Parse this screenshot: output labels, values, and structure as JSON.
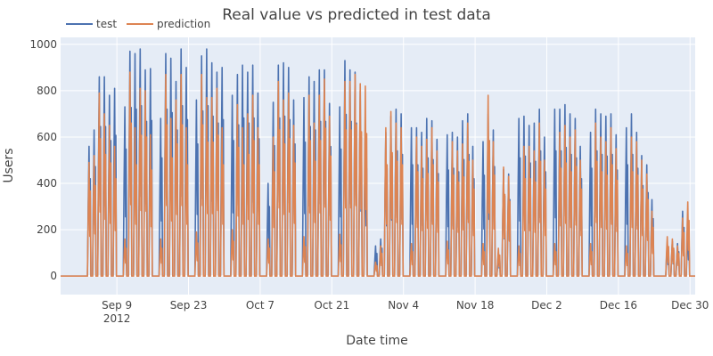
{
  "chart_data": {
    "type": "line",
    "title": "Real value vs predicted in test data",
    "xlabel": "Date time",
    "ylabel": "Users",
    "x_range": [
      "2012-08-29",
      "2012-12-31"
    ],
    "ylim": [
      -80,
      1030
    ],
    "y_ticks": [
      0,
      200,
      400,
      600,
      800,
      1000
    ],
    "x_ticks": [
      {
        "date": "2012-09-09",
        "label": "Sep 9",
        "sublabel": "2012"
      },
      {
        "date": "2012-09-23",
        "label": "Sep 23",
        "sublabel": ""
      },
      {
        "date": "2012-10-07",
        "label": "Oct 7",
        "sublabel": ""
      },
      {
        "date": "2012-10-21",
        "label": "Oct 21",
        "sublabel": ""
      },
      {
        "date": "2012-11-04",
        "label": "Nov 4",
        "sublabel": ""
      },
      {
        "date": "2012-11-18",
        "label": "Nov 18",
        "sublabel": ""
      },
      {
        "date": "2012-12-02",
        "label": "Dec 2",
        "sublabel": ""
      },
      {
        "date": "2012-12-16",
        "label": "Dec 16",
        "sublabel": ""
      },
      {
        "date": "2012-12-30",
        "label": "Dec 30",
        "sublabel": ""
      }
    ],
    "grid": true,
    "legend": "top-left, horizontal",
    "series": [
      {
        "name": "test",
        "color": "#4C72B0",
        "daily_peaks": [
          [
            "2012-09-03",
            560
          ],
          [
            "2012-09-04",
            630
          ],
          [
            "2012-09-05",
            860
          ],
          [
            "2012-09-06",
            860
          ],
          [
            "2012-09-07",
            780
          ],
          [
            "2012-09-08",
            810
          ],
          [
            "2012-09-10",
            730
          ],
          [
            "2012-09-11",
            970
          ],
          [
            "2012-09-12",
            960
          ],
          [
            "2012-09-13",
            980
          ],
          [
            "2012-09-14",
            890
          ],
          [
            "2012-09-15",
            895
          ],
          [
            "2012-09-17",
            680
          ],
          [
            "2012-09-18",
            960
          ],
          [
            "2012-09-19",
            940
          ],
          [
            "2012-09-20",
            840
          ],
          [
            "2012-09-21",
            980
          ],
          [
            "2012-09-22",
            900
          ],
          [
            "2012-09-24",
            760
          ],
          [
            "2012-09-25",
            950
          ],
          [
            "2012-09-26",
            980
          ],
          [
            "2012-09-27",
            920
          ],
          [
            "2012-09-28",
            880
          ],
          [
            "2012-09-29",
            900
          ],
          [
            "2012-10-01",
            780
          ],
          [
            "2012-10-02",
            870
          ],
          [
            "2012-10-03",
            910
          ],
          [
            "2012-10-04",
            880
          ],
          [
            "2012-10-05",
            910
          ],
          [
            "2012-10-06",
            790
          ],
          [
            "2012-10-08",
            400
          ],
          [
            "2012-10-09",
            750
          ],
          [
            "2012-10-10",
            910
          ],
          [
            "2012-10-11",
            920
          ],
          [
            "2012-10-12",
            900
          ],
          [
            "2012-10-13",
            760
          ],
          [
            "2012-10-15",
            770
          ],
          [
            "2012-10-16",
            860
          ],
          [
            "2012-10-17",
            840
          ],
          [
            "2012-10-18",
            890
          ],
          [
            "2012-10-19",
            890
          ],
          [
            "2012-10-20",
            745
          ],
          [
            "2012-10-22",
            730
          ],
          [
            "2012-10-23",
            930
          ],
          [
            "2012-10-24",
            890
          ],
          [
            "2012-10-25",
            880
          ],
          [
            "2012-10-26",
            800
          ],
          [
            "2012-10-27",
            620
          ],
          [
            "2012-10-29",
            130
          ],
          [
            "2012-10-30",
            160
          ],
          [
            "2012-10-31",
            620
          ],
          [
            "2012-11-01",
            690
          ],
          [
            "2012-11-02",
            720
          ],
          [
            "2012-11-03",
            700
          ],
          [
            "2012-11-05",
            640
          ],
          [
            "2012-11-06",
            640
          ],
          [
            "2012-11-07",
            620
          ],
          [
            "2012-11-08",
            680
          ],
          [
            "2012-11-09",
            670
          ],
          [
            "2012-11-10",
            590
          ],
          [
            "2012-11-12",
            610
          ],
          [
            "2012-11-13",
            620
          ],
          [
            "2012-11-14",
            600
          ],
          [
            "2012-11-15",
            670
          ],
          [
            "2012-11-16",
            700
          ],
          [
            "2012-11-17",
            560
          ],
          [
            "2012-11-19",
            580
          ],
          [
            "2012-11-20",
            700
          ],
          [
            "2012-11-21",
            630
          ],
          [
            "2012-11-22",
            100
          ],
          [
            "2012-11-23",
            460
          ],
          [
            "2012-11-24",
            440
          ],
          [
            "2012-11-26",
            680
          ],
          [
            "2012-11-27",
            690
          ],
          [
            "2012-11-28",
            650
          ],
          [
            "2012-11-29",
            660
          ],
          [
            "2012-11-30",
            720
          ],
          [
            "2012-12-01",
            600
          ],
          [
            "2012-12-03",
            720
          ],
          [
            "2012-12-04",
            720
          ],
          [
            "2012-12-05",
            740
          ],
          [
            "2012-12-06",
            700
          ],
          [
            "2012-12-07",
            680
          ],
          [
            "2012-12-08",
            560
          ],
          [
            "2012-12-10",
            620
          ],
          [
            "2012-12-11",
            720
          ],
          [
            "2012-12-12",
            700
          ],
          [
            "2012-12-13",
            690
          ],
          [
            "2012-12-14",
            700
          ],
          [
            "2012-12-15",
            610
          ],
          [
            "2012-12-17",
            640
          ],
          [
            "2012-12-18",
            700
          ],
          [
            "2012-12-19",
            620
          ],
          [
            "2012-12-20",
            520
          ],
          [
            "2012-12-21",
            480
          ],
          [
            "2012-12-22",
            330
          ],
          [
            "2012-12-25",
            140
          ],
          [
            "2012-12-26",
            150
          ],
          [
            "2012-12-27",
            140
          ],
          [
            "2012-12-28",
            280
          ],
          [
            "2012-12-29",
            200
          ],
          [
            "2012-12-31",
            310
          ]
        ]
      },
      {
        "name": "prediction",
        "color": "#DD8452",
        "daily_peaks": [
          [
            "2012-09-03",
            490
          ],
          [
            "2012-09-04",
            520
          ],
          [
            "2012-09-05",
            790
          ],
          [
            "2012-09-06",
            700
          ],
          [
            "2012-09-07",
            650
          ],
          [
            "2012-09-08",
            560
          ],
          [
            "2012-09-10",
            160
          ],
          [
            "2012-09-11",
            880
          ],
          [
            "2012-09-12",
            640
          ],
          [
            "2012-09-13",
            810
          ],
          [
            "2012-09-14",
            800
          ],
          [
            "2012-09-15",
            610
          ],
          [
            "2012-09-17",
            160
          ],
          [
            "2012-09-18",
            870
          ],
          [
            "2012-09-19",
            680
          ],
          [
            "2012-09-20",
            760
          ],
          [
            "2012-09-21",
            870
          ],
          [
            "2012-09-22",
            640
          ],
          [
            "2012-09-24",
            190
          ],
          [
            "2012-09-25",
            870
          ],
          [
            "2012-09-26",
            770
          ],
          [
            "2012-09-27",
            770
          ],
          [
            "2012-09-28",
            810
          ],
          [
            "2012-09-29",
            640
          ],
          [
            "2012-10-01",
            200
          ],
          [
            "2012-10-02",
            740
          ],
          [
            "2012-10-03",
            640
          ],
          [
            "2012-10-04",
            700
          ],
          [
            "2012-10-05",
            780
          ],
          [
            "2012-10-06",
            640
          ],
          [
            "2012-10-08",
            160
          ],
          [
            "2012-10-09",
            600
          ],
          [
            "2012-10-10",
            840
          ],
          [
            "2012-10-11",
            760
          ],
          [
            "2012-10-12",
            790
          ],
          [
            "2012-10-13",
            650
          ],
          [
            "2012-10-15",
            170
          ],
          [
            "2012-10-16",
            780
          ],
          [
            "2012-10-17",
            660
          ],
          [
            "2012-10-18",
            780
          ],
          [
            "2012-10-19",
            850
          ],
          [
            "2012-10-20",
            690
          ],
          [
            "2012-10-22",
            180
          ],
          [
            "2012-10-23",
            840
          ],
          [
            "2012-10-24",
            840
          ],
          [
            "2012-10-25",
            870
          ],
          [
            "2012-10-26",
            830
          ],
          [
            "2012-10-27",
            820
          ],
          [
            "2012-10-29",
            60
          ],
          [
            "2012-10-30",
            130
          ],
          [
            "2012-10-31",
            640
          ],
          [
            "2012-11-01",
            710
          ],
          [
            "2012-11-02",
            660
          ],
          [
            "2012-11-03",
            640
          ],
          [
            "2012-11-05",
            140
          ],
          [
            "2012-11-06",
            600
          ],
          [
            "2012-11-07",
            560
          ],
          [
            "2012-11-08",
            590
          ],
          [
            "2012-11-09",
            640
          ],
          [
            "2012-11-10",
            540
          ],
          [
            "2012-11-12",
            150
          ],
          [
            "2012-11-13",
            580
          ],
          [
            "2012-11-14",
            540
          ],
          [
            "2012-11-15",
            570
          ],
          [
            "2012-11-16",
            660
          ],
          [
            "2012-11-17",
            500
          ],
          [
            "2012-11-19",
            140
          ],
          [
            "2012-11-20",
            780
          ],
          [
            "2012-11-21",
            580
          ],
          [
            "2012-11-22",
            120
          ],
          [
            "2012-11-23",
            470
          ],
          [
            "2012-11-24",
            430
          ],
          [
            "2012-11-26",
            130
          ],
          [
            "2012-11-27",
            560
          ],
          [
            "2012-11-28",
            560
          ],
          [
            "2012-11-29",
            540
          ],
          [
            "2012-11-30",
            660
          ],
          [
            "2012-12-01",
            500
          ],
          [
            "2012-12-03",
            140
          ],
          [
            "2012-12-04",
            620
          ],
          [
            "2012-12-05",
            650
          ],
          [
            "2012-12-06",
            600
          ],
          [
            "2012-12-07",
            630
          ],
          [
            "2012-12-08",
            500
          ],
          [
            "2012-12-10",
            140
          ],
          [
            "2012-12-11",
            660
          ],
          [
            "2012-12-12",
            600
          ],
          [
            "2012-12-13",
            580
          ],
          [
            "2012-12-14",
            640
          ],
          [
            "2012-12-15",
            550
          ],
          [
            "2012-12-17",
            130
          ],
          [
            "2012-12-18",
            600
          ],
          [
            "2012-12-19",
            580
          ],
          [
            "2012-12-20",
            500
          ],
          [
            "2012-12-21",
            440
          ],
          [
            "2012-12-22",
            280
          ],
          [
            "2012-12-25",
            170
          ],
          [
            "2012-12-26",
            160
          ],
          [
            "2012-12-27",
            130
          ],
          [
            "2012-12-28",
            250
          ],
          [
            "2012-12-29",
            320
          ],
          [
            "2012-12-31",
            290
          ]
        ]
      }
    ]
  }
}
